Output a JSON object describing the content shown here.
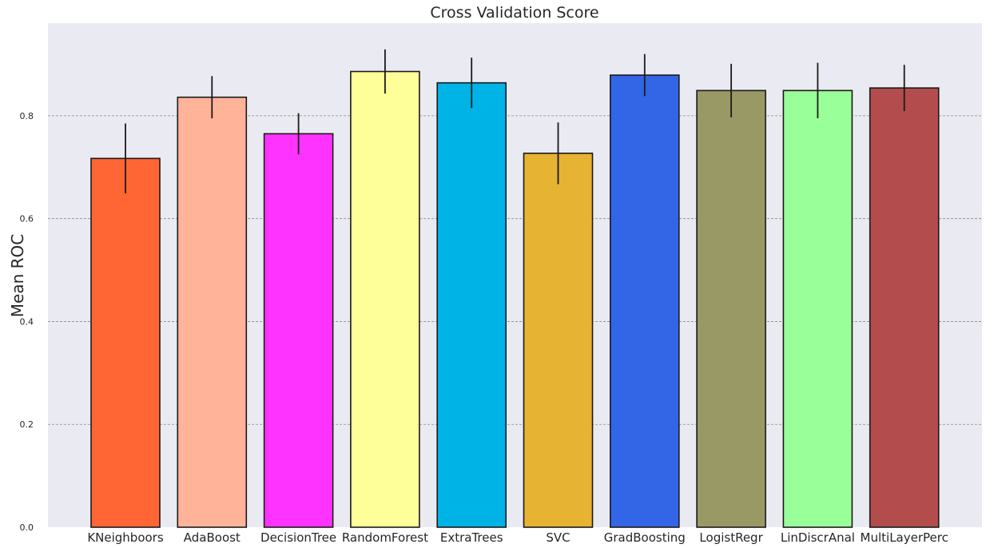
{
  "chart_data": {
    "type": "bar",
    "title": "Cross Validation Score",
    "xlabel": "",
    "ylabel": "Mean ROC",
    "ylim": [
      0,
      0.98
    ],
    "yticks": [
      "0.0",
      "0.2",
      "0.4",
      "0.6",
      "0.8"
    ],
    "grid": "horizontal dashed",
    "categories": [
      "KNeighboors",
      "AdaBoost",
      "DecisionTree",
      "RandomForest",
      "ExtraTrees",
      "SVC",
      "GradBoosting",
      "LogistRegr",
      "LinDiscrAnal",
      "MultiLayerPerc"
    ],
    "values": [
      0.717,
      0.836,
      0.765,
      0.886,
      0.864,
      0.727,
      0.879,
      0.849,
      0.849,
      0.854
    ],
    "errors": [
      0.068,
      0.041,
      0.04,
      0.043,
      0.049,
      0.06,
      0.041,
      0.052,
      0.054,
      0.045
    ],
    "colors": [
      "#ff6633",
      "#ffb399",
      "#ff33ff",
      "#ffff99",
      "#00b3e6",
      "#e6b333",
      "#3366e6",
      "#999966",
      "#99ff99",
      "#b34d4d"
    ],
    "background": "#eaeaf2"
  }
}
